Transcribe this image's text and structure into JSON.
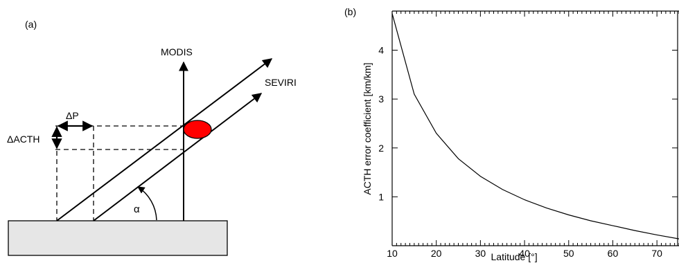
{
  "panel_a": {
    "label": "(a)",
    "modis_label": "MODIS",
    "seviri_label": "SEVIRI",
    "delta_p_label": "ΔP",
    "delta_acth_label": "ΔACTH",
    "alpha_label": "α",
    "cloud_color": "#ff0000",
    "ground_color": "#e6e6e6"
  },
  "panel_b": {
    "label": "(b)"
  },
  "chart_data": {
    "type": "line",
    "title": "",
    "xlabel": "Latitude [°]",
    "ylabel": "ACTH error coefficient [km/km]",
    "xlim": [
      10,
      75
    ],
    "ylim": [
      0,
      4.8
    ],
    "xticks": [
      10,
      20,
      30,
      40,
      50,
      60,
      70
    ],
    "yticks": [
      1,
      2,
      3,
      4
    ],
    "grid": false,
    "series": [
      {
        "x": [
          10,
          15,
          20,
          25,
          30,
          35,
          40,
          45,
          50,
          55,
          60,
          65,
          70,
          75
        ],
        "values": [
          4.75,
          3.1,
          2.3,
          1.78,
          1.42,
          1.15,
          0.94,
          0.77,
          0.63,
          0.51,
          0.41,
          0.31,
          0.22,
          0.14
        ]
      }
    ]
  }
}
